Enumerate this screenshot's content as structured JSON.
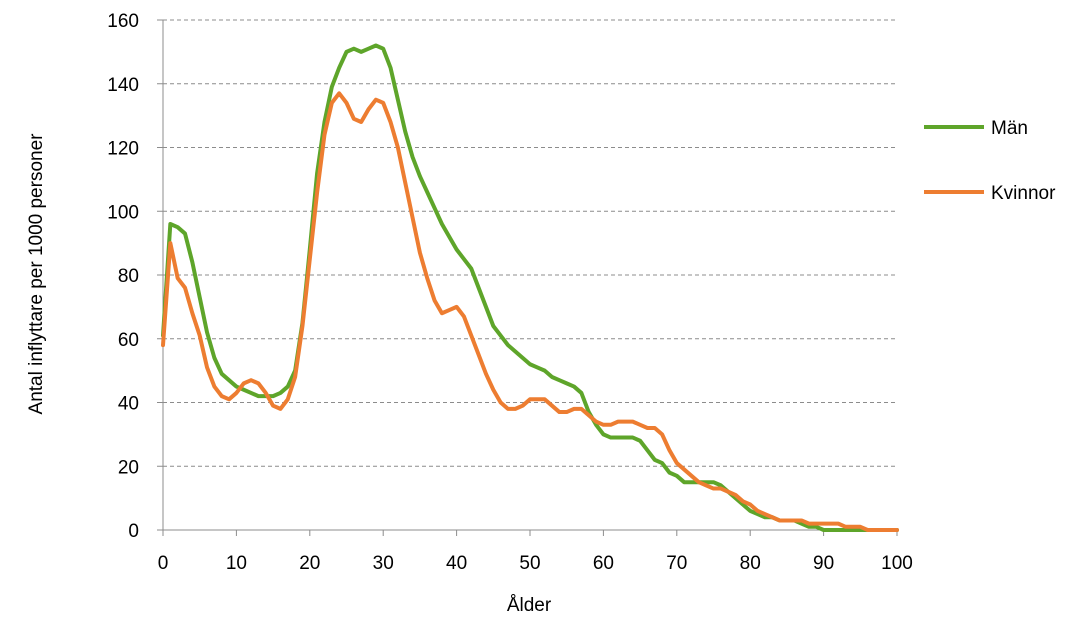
{
  "chart_data": {
    "type": "line",
    "title": "",
    "xlabel": "Ålder",
    "ylabel": "Antal inflyttare per 1000 personer",
    "xlim": [
      0,
      100
    ],
    "ylim": [
      0,
      160
    ],
    "xticks": [
      0,
      10,
      20,
      30,
      40,
      50,
      60,
      70,
      80,
      90,
      100
    ],
    "yticks": [
      0,
      20,
      40,
      60,
      80,
      100,
      120,
      140,
      160
    ],
    "grid": "horizontal dashed",
    "legend_position": "right",
    "series": [
      {
        "name": "Män",
        "color": "#5ea52a",
        "points": [
          [
            0,
            61
          ],
          [
            1,
            96
          ],
          [
            2,
            95
          ],
          [
            3,
            93
          ],
          [
            4,
            84
          ],
          [
            5,
            73
          ],
          [
            6,
            62
          ],
          [
            7,
            54
          ],
          [
            8,
            49
          ],
          [
            9,
            47
          ],
          [
            10,
            45
          ],
          [
            11,
            44
          ],
          [
            12,
            43
          ],
          [
            13,
            42
          ],
          [
            14,
            42
          ],
          [
            15,
            42
          ],
          [
            16,
            43
          ],
          [
            17,
            45
          ],
          [
            18,
            50
          ],
          [
            19,
            65
          ],
          [
            20,
            88
          ],
          [
            21,
            112
          ],
          [
            22,
            128
          ],
          [
            23,
            139
          ],
          [
            24,
            145
          ],
          [
            25,
            150
          ],
          [
            26,
            151
          ],
          [
            27,
            150
          ],
          [
            28,
            151
          ],
          [
            29,
            152
          ],
          [
            30,
            151
          ],
          [
            31,
            145
          ],
          [
            32,
            135
          ],
          [
            33,
            125
          ],
          [
            34,
            117
          ],
          [
            35,
            111
          ],
          [
            36,
            106
          ],
          [
            37,
            101
          ],
          [
            38,
            96
          ],
          [
            39,
            92
          ],
          [
            40,
            88
          ],
          [
            41,
            85
          ],
          [
            42,
            82
          ],
          [
            43,
            76
          ],
          [
            44,
            70
          ],
          [
            45,
            64
          ],
          [
            46,
            61
          ],
          [
            47,
            58
          ],
          [
            48,
            56
          ],
          [
            49,
            54
          ],
          [
            50,
            52
          ],
          [
            51,
            51
          ],
          [
            52,
            50
          ],
          [
            53,
            48
          ],
          [
            54,
            47
          ],
          [
            55,
            46
          ],
          [
            56,
            45
          ],
          [
            57,
            43
          ],
          [
            58,
            37
          ],
          [
            59,
            33
          ],
          [
            60,
            30
          ],
          [
            61,
            29
          ],
          [
            62,
            29
          ],
          [
            63,
            29
          ],
          [
            64,
            29
          ],
          [
            65,
            28
          ],
          [
            66,
            25
          ],
          [
            67,
            22
          ],
          [
            68,
            21
          ],
          [
            69,
            18
          ],
          [
            70,
            17
          ],
          [
            71,
            15
          ],
          [
            72,
            15
          ],
          [
            73,
            15
          ],
          [
            74,
            15
          ],
          [
            75,
            15
          ],
          [
            76,
            14
          ],
          [
            77,
            12
          ],
          [
            78,
            10
          ],
          [
            79,
            8
          ],
          [
            80,
            6
          ],
          [
            81,
            5
          ],
          [
            82,
            4
          ],
          [
            83,
            4
          ],
          [
            84,
            3
          ],
          [
            85,
            3
          ],
          [
            86,
            3
          ],
          [
            87,
            2
          ],
          [
            88,
            1
          ],
          [
            89,
            1
          ],
          [
            90,
            0
          ],
          [
            91,
            0
          ],
          [
            92,
            0
          ],
          [
            93,
            0
          ],
          [
            94,
            0
          ],
          [
            95,
            0
          ],
          [
            96,
            0
          ],
          [
            97,
            0
          ],
          [
            98,
            0
          ],
          [
            99,
            0
          ],
          [
            100,
            0
          ]
        ]
      },
      {
        "name": "Kvinnor",
        "color": "#ed7d31",
        "points": [
          [
            0,
            58
          ],
          [
            1,
            90
          ],
          [
            2,
            79
          ],
          [
            3,
            76
          ],
          [
            4,
            68
          ],
          [
            5,
            61
          ],
          [
            6,
            51
          ],
          [
            7,
            45
          ],
          [
            8,
            42
          ],
          [
            9,
            41
          ],
          [
            10,
            43
          ],
          [
            11,
            46
          ],
          [
            12,
            47
          ],
          [
            13,
            46
          ],
          [
            14,
            43
          ],
          [
            15,
            39
          ],
          [
            16,
            38
          ],
          [
            17,
            41
          ],
          [
            18,
            48
          ],
          [
            19,
            64
          ],
          [
            20,
            85
          ],
          [
            21,
            106
          ],
          [
            22,
            124
          ],
          [
            23,
            134
          ],
          [
            24,
            137
          ],
          [
            25,
            134
          ],
          [
            26,
            129
          ],
          [
            27,
            128
          ],
          [
            28,
            132
          ],
          [
            29,
            135
          ],
          [
            30,
            134
          ],
          [
            31,
            128
          ],
          [
            32,
            120
          ],
          [
            33,
            109
          ],
          [
            34,
            98
          ],
          [
            35,
            87
          ],
          [
            36,
            79
          ],
          [
            37,
            72
          ],
          [
            38,
            68
          ],
          [
            39,
            69
          ],
          [
            40,
            70
          ],
          [
            41,
            67
          ],
          [
            42,
            61
          ],
          [
            43,
            55
          ],
          [
            44,
            49
          ],
          [
            45,
            44
          ],
          [
            46,
            40
          ],
          [
            47,
            38
          ],
          [
            48,
            38
          ],
          [
            49,
            39
          ],
          [
            50,
            41
          ],
          [
            51,
            41
          ],
          [
            52,
            41
          ],
          [
            53,
            39
          ],
          [
            54,
            37
          ],
          [
            55,
            37
          ],
          [
            56,
            38
          ],
          [
            57,
            38
          ],
          [
            58,
            36
          ],
          [
            59,
            34
          ],
          [
            60,
            33
          ],
          [
            61,
            33
          ],
          [
            62,
            34
          ],
          [
            63,
            34
          ],
          [
            64,
            34
          ],
          [
            65,
            33
          ],
          [
            66,
            32
          ],
          [
            67,
            32
          ],
          [
            68,
            30
          ],
          [
            69,
            25
          ],
          [
            70,
            21
          ],
          [
            71,
            19
          ],
          [
            72,
            17
          ],
          [
            73,
            15
          ],
          [
            74,
            14
          ],
          [
            75,
            13
          ],
          [
            76,
            13
          ],
          [
            77,
            12
          ],
          [
            78,
            11
          ],
          [
            79,
            9
          ],
          [
            80,
            8
          ],
          [
            81,
            6
          ],
          [
            82,
            5
          ],
          [
            83,
            4
          ],
          [
            84,
            3
          ],
          [
            85,
            3
          ],
          [
            86,
            3
          ],
          [
            87,
            3
          ],
          [
            88,
            2
          ],
          [
            89,
            2
          ],
          [
            90,
            2
          ],
          [
            91,
            2
          ],
          [
            92,
            2
          ],
          [
            93,
            1
          ],
          [
            94,
            1
          ],
          [
            95,
            1
          ],
          [
            96,
            0
          ],
          [
            97,
            0
          ],
          [
            98,
            0
          ],
          [
            99,
            0
          ],
          [
            100,
            0
          ]
        ]
      }
    ]
  }
}
